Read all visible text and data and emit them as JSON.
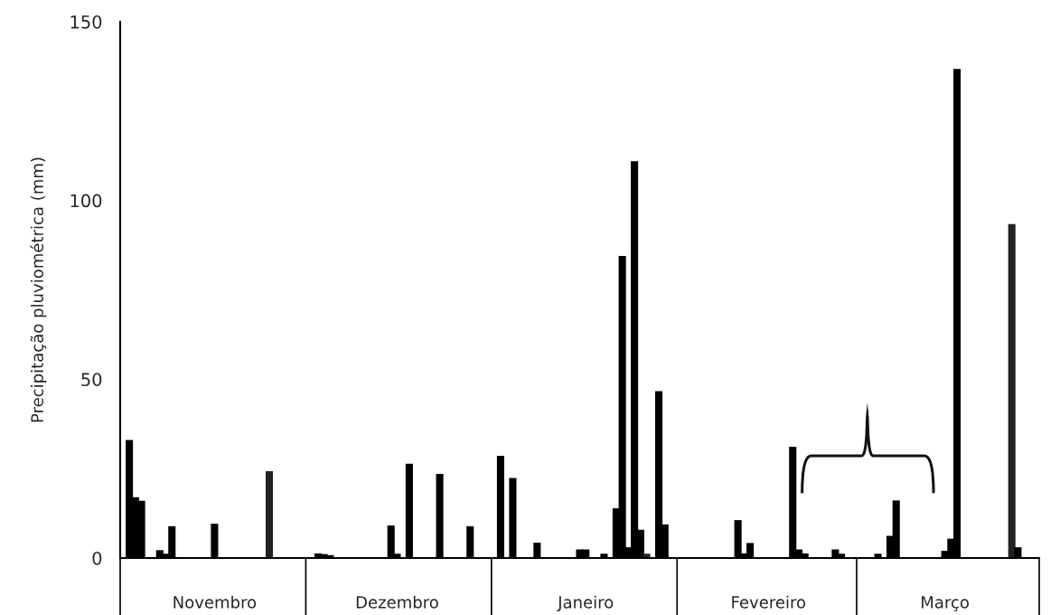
{
  "chart_data": {
    "type": "bar",
    "ylabel": "Precipitação pluviométrica (mm)",
    "categories": [
      null,
      null,
      null,
      null,
      null,
      null,
      null,
      null,
      null,
      null,
      null,
      null,
      null,
      null,
      null,
      "Novembro",
      null,
      null,
      null,
      null,
      null,
      null,
      null,
      null,
      null,
      null,
      null,
      null,
      null,
      null,
      null,
      null,
      null,
      null,
      null,
      null,
      null,
      null,
      null,
      null,
      null,
      null,
      null,
      null,
      null,
      "Dezembro",
      null,
      null,
      null,
      null,
      null,
      null,
      null,
      null,
      null,
      null,
      null,
      null,
      null,
      null,
      null,
      null,
      null,
      null,
      null,
      null,
      null,
      null,
      null,
      null,
      null,
      null,
      null,
      null,
      null,
      null,
      "Janeiro",
      null,
      null,
      null,
      null,
      null,
      null,
      null,
      null,
      null,
      null,
      null,
      null,
      null,
      null,
      null,
      null,
      null,
      null,
      null,
      null,
      null,
      null,
      null,
      null,
      null,
      null,
      null,
      null,
      null,
      "Fevereiro",
      null,
      null,
      null,
      null,
      null,
      null,
      null,
      null,
      null,
      null,
      null,
      null,
      null,
      null,
      null,
      null,
      null,
      null,
      null,
      null,
      null,
      null,
      null,
      null,
      null,
      null,
      null,
      null,
      "Março",
      null,
      null,
      null,
      null,
      null,
      null,
      null,
      null,
      null,
      null,
      null,
      null,
      null,
      null,
      null
    ],
    "values": [
      null,
      33,
      17,
      16,
      null,
      null,
      2.2,
      1.2,
      8.9,
      null,
      null,
      null,
      null,
      null,
      null,
      9.6,
      null,
      null,
      null,
      null,
      null,
      null,
      null,
      null,
      24.3,
      null,
      null,
      null,
      null,
      null,
      null,
      null,
      1.3,
      1.1,
      0.8,
      null,
      null,
      null,
      null,
      null,
      null,
      null,
      null,
      null,
      9.1,
      1.2,
      null,
      26.4,
      null,
      null,
      null,
      null,
      23.5,
      null,
      null,
      null,
      null,
      8.9,
      null,
      null,
      null,
      null,
      28.6,
      null,
      22.4,
      null,
      null,
      null,
      4.3,
      null,
      null,
      null,
      null,
      null,
      null,
      2.4,
      2.4,
      null,
      null,
      1.2,
      null,
      13.9,
      84.5,
      3,
      111,
      7.9,
      1.2,
      null,
      46.7,
      9.4,
      null,
      null,
      null,
      null,
      null,
      null,
      null,
      null,
      null,
      null,
      null,
      10.6,
      1.3,
      4.2,
      null,
      null,
      null,
      null,
      null,
      null,
      31.1,
      2.4,
      1.3,
      null,
      null,
      null,
      null,
      2.4,
      1.2,
      null,
      null,
      null,
      null,
      null,
      1.2,
      null,
      6.2,
      16.1,
      null,
      null,
      null,
      null,
      null,
      null,
      null,
      2,
      5.4,
      136.8,
      null,
      null,
      null,
      null,
      null,
      null,
      null,
      null,
      93.4,
      3,
      null,
      null,
      null
    ],
    "colors": [
      "#000000",
      "#000000",
      "#000000",
      "#000000",
      "#000000",
      "#000000",
      "#000000",
      "#000000",
      "#000000",
      "#000000",
      "#000000",
      "#000000",
      "#000000",
      "#000000",
      "#000000",
      "#000000",
      "#000000",
      "#000000",
      "#000000",
      "#000000",
      "#000000",
      "#000000",
      "#000000",
      "#000000",
      "#222222",
      "#000000",
      "#000000",
      "#000000",
      "#000000",
      "#000000",
      "#000000",
      "#000000",
      "#000000",
      "#000000",
      "#000000",
      "#000000",
      "#000000",
      "#000000",
      "#000000",
      "#000000",
      "#000000",
      "#000000",
      "#000000",
      "#000000",
      "#000000",
      "#000000",
      "#000000",
      "#000000",
      "#000000",
      "#000000",
      "#000000",
      "#000000",
      "#000000",
      "#000000",
      "#000000",
      "#000000",
      "#000000",
      "#000000",
      "#000000",
      "#000000",
      "#000000",
      "#000000",
      "#000000",
      "#000000",
      "#000000",
      "#000000",
      "#000000",
      "#000000",
      "#000000",
      "#000000",
      "#000000",
      "#000000",
      "#000000",
      "#000000",
      "#000000",
      "#000000",
      "#000000",
      "#000000",
      "#000000",
      "#000000",
      "#000000",
      "#000000",
      "#000000",
      "#000000",
      "#000000",
      "#000000",
      "#222222",
      "#000000",
      "#000000",
      "#000000",
      "#000000",
      "#000000",
      "#000000",
      "#000000",
      "#000000",
      "#000000",
      "#000000",
      "#000000",
      "#000000",
      "#000000",
      "#000000",
      "#000000",
      "#000000",
      "#000000",
      "#222222",
      "#000000",
      "#000000",
      "#000000",
      "#000000",
      "#000000",
      "#000000",
      "#000000",
      "#000000",
      "#000000",
      "#000000",
      "#000000",
      "#000000",
      "#000000",
      "#000000",
      "#000000",
      "#000000",
      "#000000",
      "#000000",
      "#000000",
      "#000000",
      "#000000",
      "#000000",
      "#000000",
      "#000000",
      "#000000",
      "#000000",
      "#000000",
      "#000000",
      "#000000",
      "#000000",
      "#000000",
      "#000000",
      "#000000",
      "#000000",
      "#000000",
      "#000000",
      "#000000",
      "#000000",
      "#000000",
      "#000000",
      "#000000",
      "#222222",
      "#000000",
      "#000000",
      "#000000",
      "#000000"
    ],
    "ylim": [
      0,
      150
    ],
    "yticks": [
      0,
      50,
      100,
      150
    ],
    "grid": false,
    "legend": false
  }
}
